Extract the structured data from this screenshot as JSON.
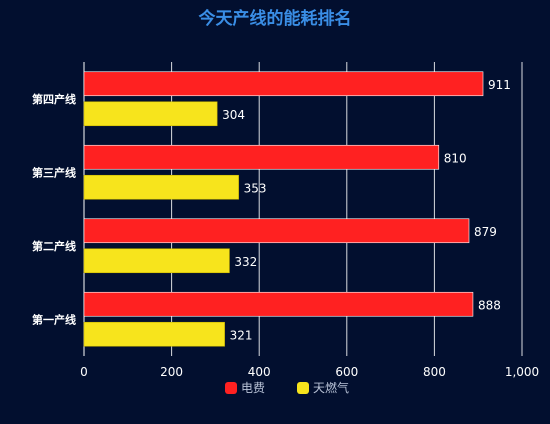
{
  "chart_data": {
    "type": "bar",
    "orientation": "horizontal",
    "title": "今天产线的能耗排名",
    "categories": [
      "第一产线",
      "第二产线",
      "第三产线",
      "第四产线"
    ],
    "series": [
      {
        "name": "电费",
        "values": [
          888,
          879,
          810,
          911
        ],
        "color": "#ff2121"
      },
      {
        "name": "天燃气",
        "values": [
          321,
          332,
          353,
          304
        ],
        "color": "#f7e41c"
      }
    ],
    "xlim": [
      0,
      1000
    ],
    "xticks": [
      0,
      200,
      400,
      600,
      800,
      1000
    ],
    "xtick_labels": [
      "0",
      "200",
      "400",
      "600",
      "800",
      "1,000"
    ],
    "grid": "vertical",
    "legend": "bottom-center",
    "colors": {
      "background": "#020f2f",
      "title": "#3a8ee6",
      "grid": "#ffffff",
      "text": "#ffffff",
      "legend_text": "#b8c2d6"
    }
  }
}
